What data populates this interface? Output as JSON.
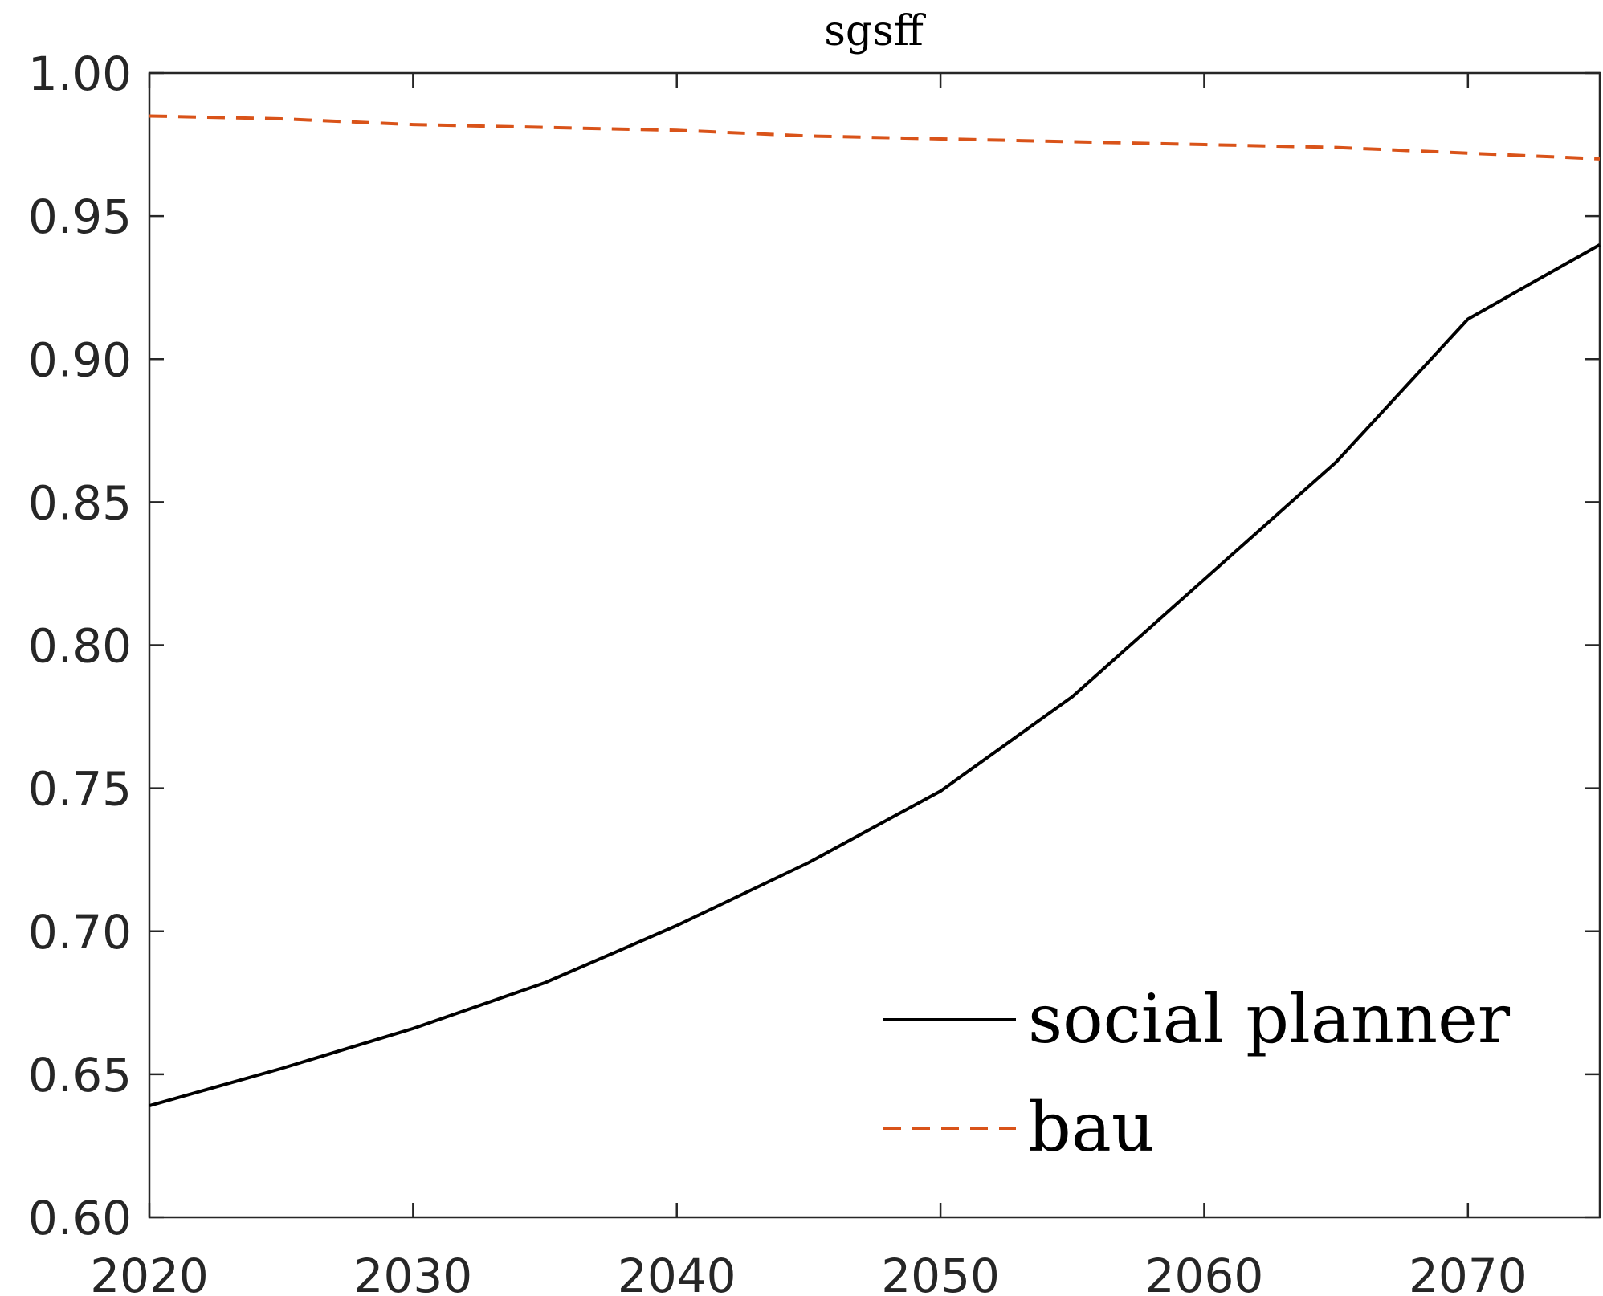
{
  "chart_data": {
    "type": "line",
    "title": "sgsff",
    "xlabel": "",
    "ylabel": "",
    "xlim": [
      2020,
      2075
    ],
    "ylim": [
      0.6,
      1.0
    ],
    "xticks": [
      2020,
      2030,
      2040,
      2050,
      2060,
      2070
    ],
    "xtick_labels": [
      "2020",
      "2030",
      "2040",
      "2050",
      "2060",
      "2070"
    ],
    "yticks": [
      0.6,
      0.65,
      0.7,
      0.75,
      0.8,
      0.85,
      0.9,
      0.95,
      1.0
    ],
    "ytick_labels": [
      "0.60",
      "0.65",
      "0.70",
      "0.75",
      "0.80",
      "0.85",
      "0.90",
      "0.95",
      "1.00"
    ],
    "grid": false,
    "legend_position": "bottom-right",
    "x": [
      2020,
      2025,
      2030,
      2035,
      2040,
      2045,
      2050,
      2055,
      2060,
      2065,
      2070,
      2075
    ],
    "series": [
      {
        "name": "social planner",
        "color": "#000000",
        "dash": "solid",
        "values": [
          0.639,
          0.652,
          0.666,
          0.682,
          0.702,
          0.724,
          0.749,
          0.782,
          0.823,
          0.864,
          0.914,
          0.94
        ]
      },
      {
        "name": "bau",
        "color": "#D95319",
        "dash": "dashed",
        "values": [
          0.985,
          0.984,
          0.982,
          0.981,
          0.98,
          0.978,
          0.977,
          0.976,
          0.975,
          0.974,
          0.972,
          0.97
        ]
      }
    ]
  }
}
